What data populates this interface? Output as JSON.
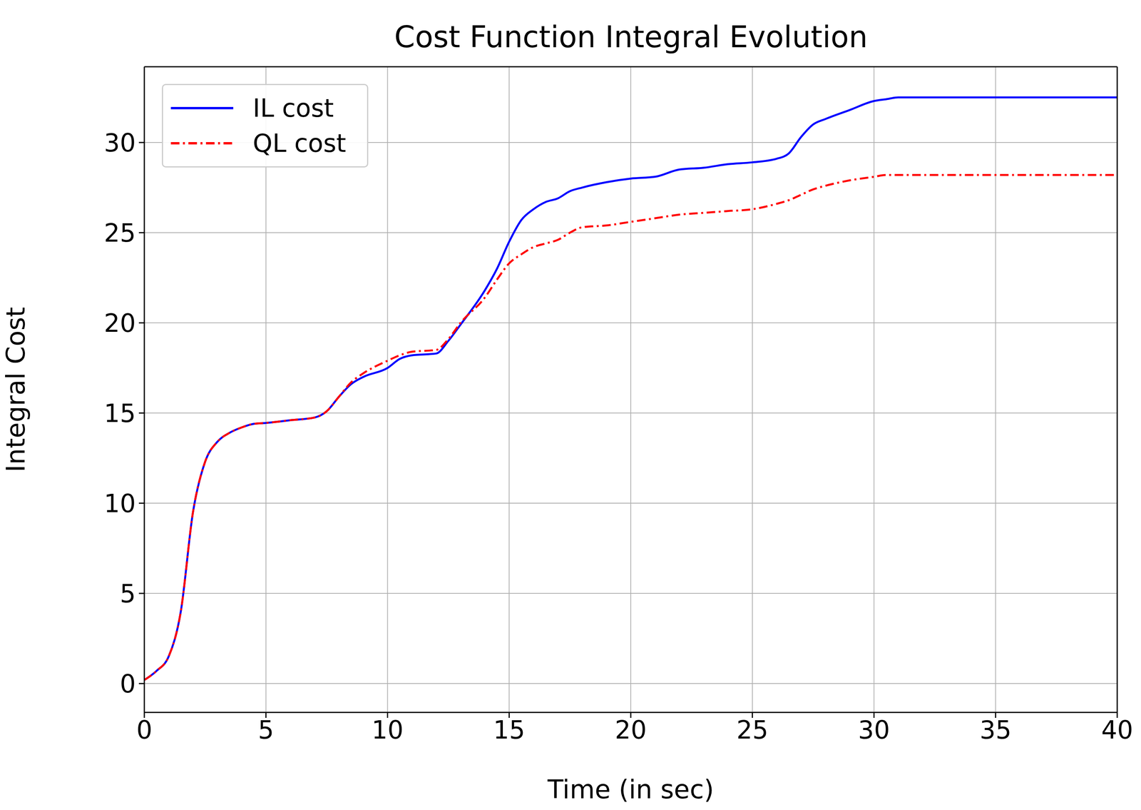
{
  "chart_data": {
    "type": "line",
    "title": "Cost Function Integral Evolution",
    "x_label": "Time (in sec)",
    "y_label": "Integral Cost",
    "x": [
      0,
      0.5,
      1,
      1.5,
      2,
      2.5,
      3,
      3.5,
      4,
      4.5,
      5,
      6,
      7,
      7.5,
      8,
      8.5,
      9,
      10,
      10.5,
      11,
      12,
      12.5,
      13,
      14,
      14.5,
      15,
      15.5,
      16,
      16.5,
      17,
      17.5,
      18,
      19,
      20,
      21,
      22,
      23,
      24,
      25,
      26,
      26.5,
      27,
      27.5,
      28,
      29,
      30,
      30.5,
      31,
      32,
      34,
      36,
      38,
      40
    ],
    "series": [
      {
        "name": "IL cost",
        "color": "#0000ff",
        "line_style": "solid",
        "values": [
          0.2,
          0.7,
          1.5,
          4,
          9.5,
          12.3,
          13.4,
          13.9,
          14.2,
          14.4,
          14.45,
          14.6,
          14.75,
          15.1,
          15.9,
          16.6,
          17,
          17.5,
          18,
          18.2,
          18.3,
          19,
          19.9,
          21.8,
          23,
          24.5,
          25.7,
          26.3,
          26.7,
          26.9,
          27.3,
          27.5,
          27.8,
          28,
          28.1,
          28.5,
          28.6,
          28.8,
          28.9,
          29.1,
          29.4,
          30.3,
          31,
          31.3,
          31.8,
          32.3,
          32.4,
          32.5,
          32.5,
          32.5,
          32.5,
          32.5,
          32.5
        ]
      },
      {
        "name": "QL cost",
        "color": "#ff0000",
        "line_style": "dashdot",
        "values": [
          0.2,
          0.7,
          1.5,
          4,
          9.5,
          12.3,
          13.4,
          13.9,
          14.2,
          14.4,
          14.45,
          14.6,
          14.75,
          15.1,
          15.9,
          16.7,
          17.2,
          17.9,
          18.2,
          18.4,
          18.5,
          19.1,
          20,
          21.4,
          22.4,
          23.3,
          23.8,
          24.2,
          24.4,
          24.6,
          25,
          25.3,
          25.4,
          25.6,
          25.8,
          26,
          26.1,
          26.2,
          26.3,
          26.6,
          26.8,
          27.1,
          27.4,
          27.6,
          27.9,
          28.1,
          28.2,
          28.2,
          28.2,
          28.2,
          28.2,
          28.2,
          28.2
        ]
      }
    ],
    "xlim": [
      0,
      40
    ],
    "xticks": [
      0,
      5,
      10,
      15,
      20,
      25,
      30,
      35,
      40
    ],
    "ylim": [
      -1.6,
      34.2
    ],
    "yticks": [
      0,
      5,
      10,
      15,
      20,
      25,
      30
    ],
    "grid": true,
    "legend": "upper left"
  }
}
